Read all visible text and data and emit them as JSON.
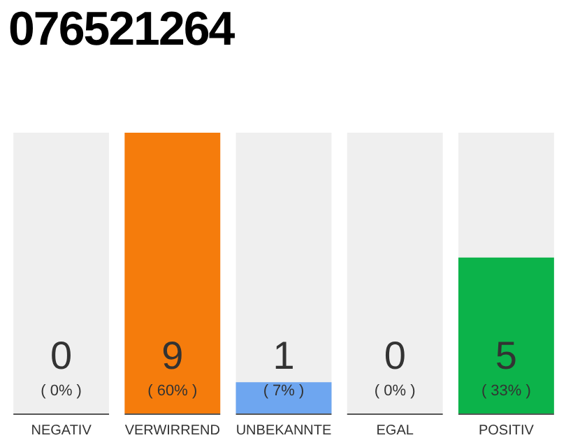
{
  "chart_data": {
    "type": "bar",
    "title": "076521264",
    "categories": [
      "NEGATIV",
      "VERWIRREND",
      "UNBEKANNTE",
      "EGAL",
      "POSITIV"
    ],
    "values": [
      0,
      9,
      1,
      0,
      5
    ],
    "colors": [
      "#555555",
      "#f57c0c",
      "#6ea6f0",
      "#555555",
      "#0cb34a"
    ],
    "value_labels": [
      "0\n( 0% )",
      "9\n( 60% )",
      "1\n( 7% )",
      "0\n( 0% )",
      "5\n( 33% )"
    ],
    "bands": [
      {
        "axis": "x",
        "from": "NEGATIV",
        "to": "NEGATIV",
        "color": "#efefef"
      },
      {
        "axis": "x",
        "from": "UNBEKANNTE",
        "to": "UNBEKANNTE",
        "color": "#efefef"
      },
      {
        "axis": "x",
        "from": "EGAL",
        "to": "EGAL",
        "color": "#efefef"
      },
      {
        "axis": "x",
        "from": "POSITIV",
        "to": "POSITIV",
        "color": "#efefef"
      }
    ],
    "grid": false,
    "legend": false
  }
}
